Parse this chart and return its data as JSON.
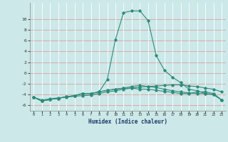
{
  "x": [
    0,
    1,
    2,
    3,
    4,
    5,
    6,
    7,
    8,
    9,
    10,
    11,
    12,
    13,
    14,
    15,
    16,
    17,
    18,
    19,
    20,
    21,
    22,
    23
  ],
  "curve_peak": [
    -4.5,
    -5.2,
    -4.9,
    -4.7,
    -4.4,
    -4.2,
    -3.8,
    -3.8,
    -3.5,
    -1.2,
    6.2,
    11.2,
    11.5,
    11.5,
    9.7,
    3.2,
    0.5,
    -0.8,
    -1.8,
    -3.0,
    -3.3,
    -3.8,
    -4.0,
    -5.0
  ],
  "curve_mid": [
    -4.5,
    -5.2,
    -4.9,
    -4.7,
    -4.4,
    -4.2,
    -3.8,
    -3.8,
    -3.5,
    -3.2,
    -3.0,
    -2.8,
    -2.5,
    -2.3,
    -2.5,
    -2.7,
    -3.0,
    -3.3,
    -3.5,
    -3.7,
    -3.8,
    -3.8,
    -4.0,
    -5.0
  ],
  "curve_low1": [
    -4.5,
    -5.2,
    -4.9,
    -4.7,
    -4.4,
    -4.2,
    -3.8,
    -3.8,
    -3.5,
    -3.2,
    -3.0,
    -2.8,
    -2.8,
    -3.0,
    -3.0,
    -3.2,
    -3.4,
    -3.6,
    -3.8,
    -3.8,
    -3.5,
    -3.5,
    -3.8,
    -5.0
  ],
  "curve_top": [
    -4.5,
    -5.0,
    -4.8,
    -4.6,
    -4.5,
    -4.3,
    -4.2,
    -4.1,
    -3.8,
    -3.5,
    -3.3,
    -3.0,
    -2.8,
    -2.6,
    -2.5,
    -2.4,
    -2.3,
    -2.2,
    -2.2,
    -2.4,
    -2.5,
    -2.8,
    -3.0,
    -3.5
  ],
  "line_color": "#2e8b7a",
  "bg_color": "#cce8e8",
  "ylim": [
    -7,
    13
  ],
  "yticks": [
    -6,
    -4,
    -2,
    0,
    2,
    4,
    6,
    8,
    10
  ],
  "xlim": [
    -0.5,
    23.5
  ],
  "xlabel": "Humidex (Indice chaleur)"
}
